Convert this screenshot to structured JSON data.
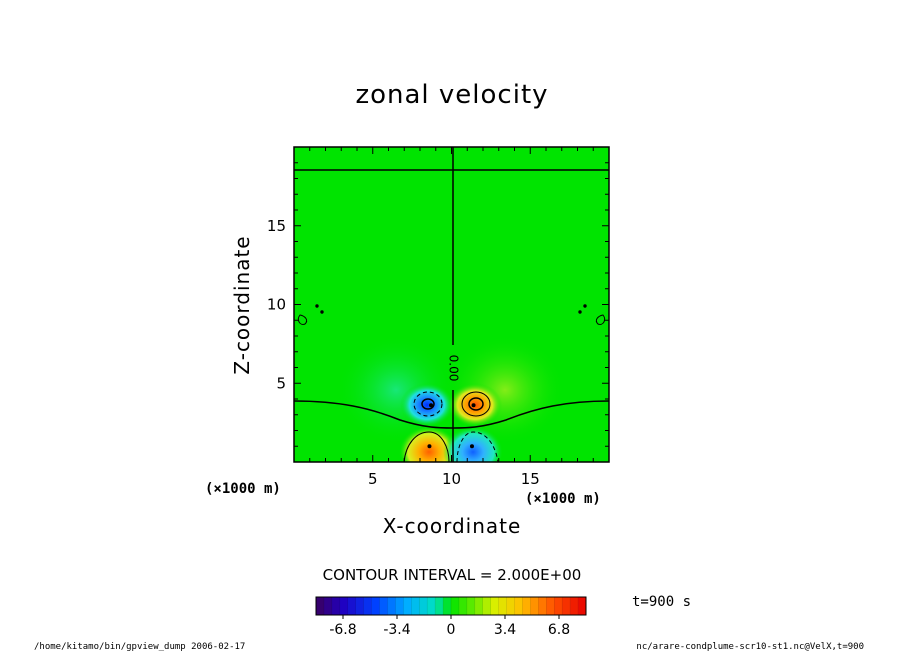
{
  "chart_data": {
    "type": "heatmap",
    "title": "zonal velocity",
    "xlabel": "X-coordinate",
    "ylabel": "Z-coordinate",
    "x_unit": "(×1000 m)",
    "y_unit": "(×1000 m)",
    "xlim": [
      0,
      20
    ],
    "ylim": [
      0,
      20
    ],
    "x_ticks": [
      5,
      10,
      15
    ],
    "y_ticks": [
      5,
      10,
      15
    ],
    "contour_interval": "CONTOUR INTERVAL = 2.000E+00",
    "zero_contour_label": "0.00",
    "time_label": "t=900 s",
    "colorbar": {
      "min": -8.5,
      "max": 8.5,
      "ticks": [
        "-6.8",
        "-3.4",
        "0",
        "3.4",
        "6.8"
      ],
      "tick_values": [
        -6.8,
        -3.4,
        0,
        3.4,
        6.8
      ]
    },
    "features": [
      {
        "kind": "min",
        "x": 8.7,
        "z": 3.6,
        "value": -5.5
      },
      {
        "kind": "max",
        "x": 11.4,
        "z": 3.6,
        "value": 5.5
      },
      {
        "kind": "max",
        "x": 8.6,
        "z": 1.0,
        "value": 5.0
      },
      {
        "kind": "min",
        "x": 11.3,
        "z": 1.0,
        "value": -4.5
      }
    ]
  },
  "footer": {
    "left": "/home/kitamo/bin/gpview_dump  2006-02-17",
    "right": "nc/arare-condplume-scr10-st1.nc@VelX,t=900"
  },
  "colors": {
    "background": "#00e400",
    "negative_peak": "#0a3cff",
    "positive_peak": "#ff6a00"
  }
}
